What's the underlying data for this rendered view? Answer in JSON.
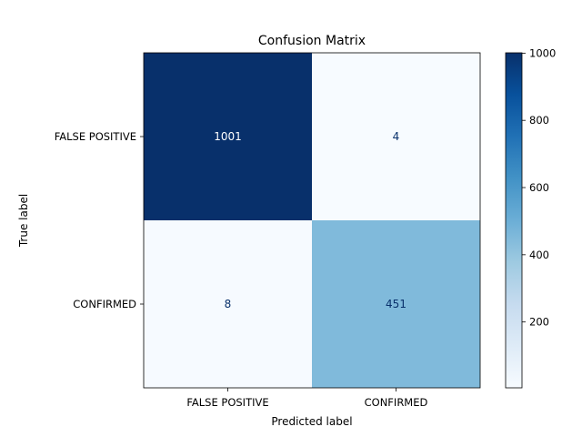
{
  "chart_data": {
    "type": "heatmap",
    "title": "Confusion Matrix",
    "xlabel": "Predicted label",
    "ylabel": "True label",
    "x_categories": [
      "FALSE POSITIVE",
      "CONFIRMED"
    ],
    "y_categories": [
      "FALSE POSITIVE",
      "CONFIRMED"
    ],
    "values": [
      [
        1001,
        4
      ],
      [
        8,
        451
      ]
    ],
    "colormap": "Blues",
    "colorbar": {
      "min": 4,
      "max": 1001,
      "ticks": [
        200,
        400,
        600,
        800,
        1000
      ]
    },
    "grid": false
  }
}
